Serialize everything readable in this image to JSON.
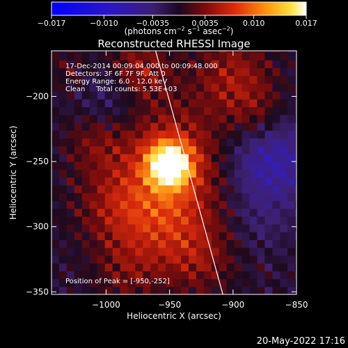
{
  "chart_data": {
    "type": "heatmap",
    "title": "Reconstructed RHESSI Image",
    "xlabel": "Heliocentric X (arcsec)",
    "ylabel": "Heliocentric Y (arcsec)",
    "xlim": [
      -1043,
      -850
    ],
    "ylim": [
      -352,
      -165
    ],
    "xticks": [
      -1000,
      -950,
      -900,
      -850
    ],
    "xtick_labels": [
      "−1000",
      "−950",
      "−900",
      "−850"
    ],
    "yticks": [
      -200,
      -250,
      -300,
      -350
    ],
    "ytick_labels": [
      "−200",
      "−250",
      "−300",
      "−350"
    ],
    "colorbar": {
      "range": [
        -0.017,
        0.017
      ],
      "ticks": [
        -0.017,
        -0.01,
        -0.0035,
        0.0035,
        0.01,
        0.017
      ],
      "tick_labels": [
        "−0.017",
        "−0.010",
        "−0.0035",
        "0.0035",
        "0.010",
        "0.017"
      ],
      "unit_label_parts": [
        "(photons cm",
        "−2",
        " s",
        "−1",
        " asec",
        "−2",
        ")"
      ],
      "colormap": "blue-purple-red-orange-yellow-white"
    },
    "annotations": [
      "17-Dec-2014 00:09:04.000 to 00:09:48.000",
      "Detectors: 3F 6F 7F 9F, Att 0",
      "Energy Range: 6.0 - 12.0 keV",
      "Clean     Total counts: 5.53E+03",
      "Position of Peak = [-950,-252]"
    ],
    "peak": {
      "x": -950,
      "y": -252,
      "value": 0.017
    },
    "limb_line": [
      [
        -961,
        -165
      ],
      [
        -908,
        -352
      ]
    ]
  },
  "footer": {
    "date": "20-May-2022 17:16"
  }
}
